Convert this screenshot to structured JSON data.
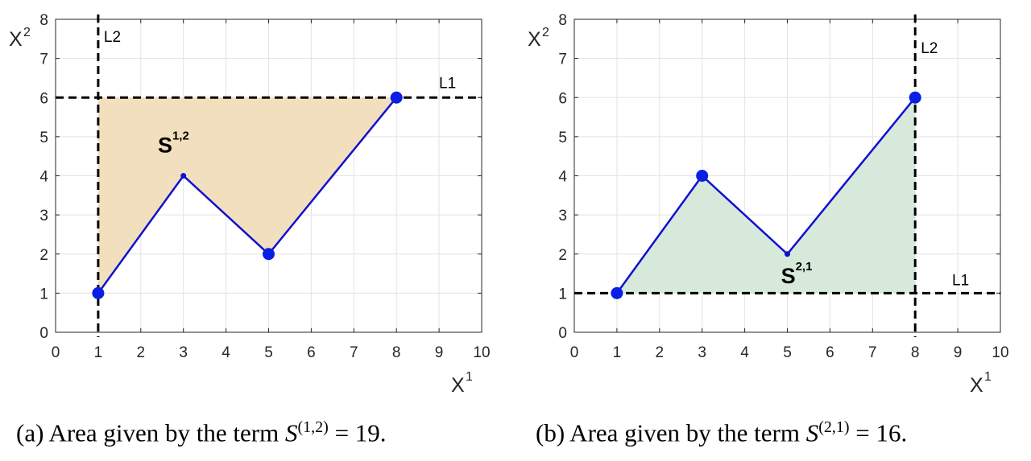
{
  "chart_data": [
    {
      "type": "line",
      "fill_color": "#f2dfbd",
      "line_color": "#1010d0",
      "marker_color": "#0a1ee6",
      "xlabel": "X",
      "xlabel_sup": "1",
      "ylabel": "X",
      "ylabel_sup": "2",
      "xlim": [
        0,
        10
      ],
      "ylim": [
        0,
        8
      ],
      "xticks": [
        0,
        1,
        2,
        3,
        4,
        5,
        6,
        7,
        8,
        9,
        10
      ],
      "yticks": [
        0,
        1,
        2,
        3,
        4,
        5,
        6,
        7,
        8
      ],
      "grid": true,
      "path_x": [
        1,
        3,
        5,
        8
      ],
      "path_y": [
        1,
        4,
        2,
        6
      ],
      "marker_x": [
        1,
        5,
        8
      ],
      "marker_y": [
        1,
        2,
        6
      ],
      "area_label": "S",
      "area_label_sup": "1,2",
      "area_label_pos": [
        2.4,
        4.6
      ],
      "vline_x": 1,
      "vline_label": "L2",
      "hline_y": 6,
      "hline_label": "L1",
      "shaded_polygon": [
        [
          1,
          1
        ],
        [
          3,
          4
        ],
        [
          5,
          2
        ],
        [
          8,
          6
        ],
        [
          1,
          6
        ]
      ]
    },
    {
      "type": "line",
      "fill_color": "#d6e9da",
      "line_color": "#1010d0",
      "marker_color": "#0a1ee6",
      "xlabel": "X",
      "xlabel_sup": "1",
      "ylabel": "X",
      "ylabel_sup": "2",
      "xlim": [
        0,
        10
      ],
      "ylim": [
        0,
        8
      ],
      "xticks": [
        0,
        1,
        2,
        3,
        4,
        5,
        6,
        7,
        8,
        9,
        10
      ],
      "yticks": [
        0,
        1,
        2,
        3,
        4,
        5,
        6,
        7,
        8
      ],
      "grid": true,
      "path_x": [
        1,
        3,
        5,
        8
      ],
      "path_y": [
        1,
        4,
        2,
        6
      ],
      "marker_x": [
        1,
        3,
        8
      ],
      "marker_y": [
        1,
        4,
        6
      ],
      "area_label": "S",
      "area_label_sup": "2,1",
      "area_label_pos": [
        4.85,
        1.25
      ],
      "vline_x": 8,
      "vline_label": "L2",
      "hline_y": 1,
      "hline_label": "L1",
      "shaded_polygon": [
        [
          1,
          1
        ],
        [
          3,
          4
        ],
        [
          5,
          2
        ],
        [
          8,
          6
        ],
        [
          8,
          1
        ]
      ]
    }
  ],
  "captions": [
    {
      "prefix": "(a) Area given by the term ",
      "var": "S",
      "sup": "(1,2)",
      "suffix": " = 19."
    },
    {
      "prefix": "(b) Area given by the term ",
      "var": "S",
      "sup": "(2,1)",
      "suffix": " = 16."
    }
  ]
}
